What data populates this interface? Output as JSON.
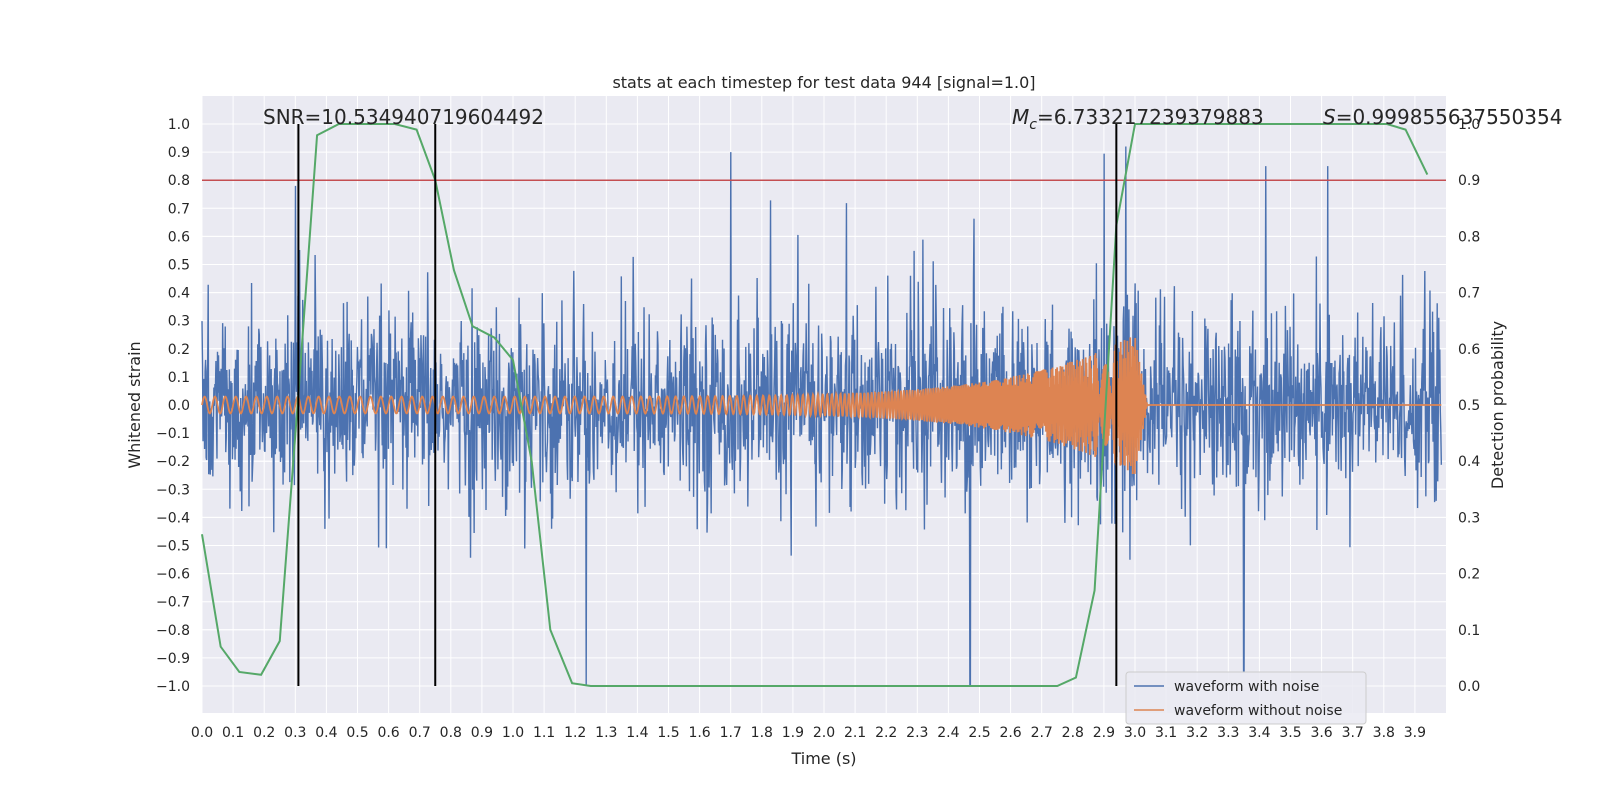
{
  "chart_data": {
    "type": "line",
    "title": "stats at each timestep for test data 944 [signal=1.0]",
    "xlabel": "Time (s)",
    "ylabel": "Whitened strain",
    "ylabel_right": "Detection probability",
    "xlim": [
      0.0,
      4.0
    ],
    "ylim": [
      -1.0,
      1.0
    ],
    "ylim_right": [
      0.0,
      1.0
    ],
    "x_ticks": [
      "0.0",
      "0.1",
      "0.2",
      "0.3",
      "0.4",
      "0.5",
      "0.6",
      "0.7",
      "0.8",
      "0.9",
      "1.0",
      "1.1",
      "1.2",
      "1.3",
      "1.4",
      "1.5",
      "1.6",
      "1.7",
      "1.8",
      "1.9",
      "2.0",
      "2.1",
      "2.2",
      "2.3",
      "2.4",
      "2.5",
      "2.6",
      "2.7",
      "2.8",
      "2.9",
      "3.0",
      "3.1",
      "3.2",
      "3.3",
      "3.4",
      "3.5",
      "3.6",
      "3.7",
      "3.8",
      "3.9"
    ],
    "y_ticks": [
      "−1.0",
      "−0.9",
      "−0.8",
      "−0.7",
      "−0.6",
      "−0.5",
      "−0.4",
      "−0.3",
      "−0.2",
      "−0.1",
      "0.0",
      "0.1",
      "0.2",
      "0.3",
      "0.4",
      "0.5",
      "0.6",
      "0.7",
      "0.8",
      "0.9",
      "1.0"
    ],
    "y_right_ticks": [
      "0.0",
      "0.1",
      "0.2",
      "0.3",
      "0.4",
      "0.5",
      "0.6",
      "0.7",
      "0.8",
      "0.9",
      "1.0"
    ],
    "annotations": {
      "snr": "SNR=10.534940719604492",
      "mc_symbol": "M",
      "mc_sub": "c",
      "mc_value": "=6.733217239379883",
      "s_symbol": "S",
      "s_value": "=0.999855637550354"
    },
    "threshold_line": 0.9,
    "vertical_lines": [
      0.31,
      0.75,
      2.94
    ],
    "colors": {
      "noisy": "#4c72b0",
      "clean": "#dd8452",
      "prob": "#55a868",
      "threshold": "#c44e52",
      "vline": "#000000",
      "axes_bg": "#eaeaf2"
    },
    "series": [
      {
        "name": "waveform with noise",
        "description_in_data": "whitened noisy strain, amplitude roughly within ±0.5 with spikes to ±1.0",
        "peaks": [
          [
            0.3,
            0.78
          ],
          [
            1.7,
            0.9
          ],
          [
            2.47,
            -1.0
          ],
          [
            3.35,
            -0.95
          ],
          [
            3.62,
            0.85
          ],
          [
            3.42,
            0.85
          ]
        ]
      },
      {
        "name": "waveform without noise",
        "chirp": {
          "start_time": 0.0,
          "merger_time": 3.0,
          "start_amp": 0.03,
          "peak_amp": 0.25,
          "start_freq_hz": 30,
          "end_freq_hz": 300
        }
      },
      {
        "name": "detection probability",
        "axis": "right",
        "x": [
          0.0,
          0.06,
          0.12,
          0.19,
          0.25,
          0.31,
          0.37,
          0.44,
          0.5,
          0.56,
          0.62,
          0.69,
          0.75,
          0.81,
          0.87,
          0.94,
          1.0,
          1.06,
          1.12,
          1.19,
          1.25,
          1.31,
          1.37,
          1.44,
          1.5,
          2.0,
          2.5,
          2.62,
          2.69,
          2.75,
          2.81,
          2.87,
          2.94,
          3.0,
          3.06,
          3.12,
          3.19,
          3.25,
          3.5,
          3.75,
          3.81,
          3.87,
          3.94
        ],
        "y": [
          0.27,
          0.07,
          0.025,
          0.02,
          0.08,
          0.52,
          0.98,
          1.0,
          1.0,
          1.0,
          1.0,
          0.99,
          0.9,
          0.74,
          0.64,
          0.62,
          0.58,
          0.4,
          0.1,
          0.005,
          0.0,
          0.0,
          0.0,
          0.0,
          0.0,
          0.0,
          0.0,
          0.0,
          0.0,
          0.0,
          0.015,
          0.17,
          0.82,
          1.0,
          1.0,
          1.0,
          1.0,
          1.0,
          1.0,
          1.0,
          1.0,
          0.99,
          0.91
        ]
      }
    ],
    "legend": {
      "position": "lower-right",
      "entries": [
        "waveform with noise",
        "waveform without noise"
      ]
    }
  }
}
